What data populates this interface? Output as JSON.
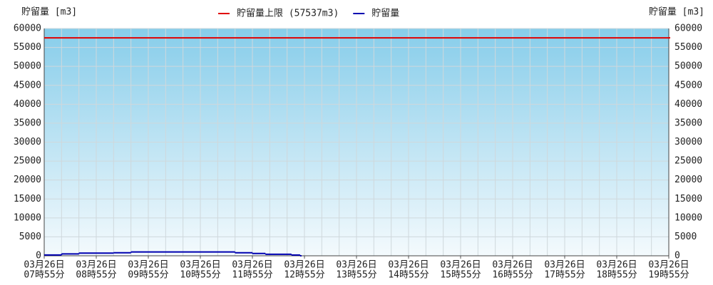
{
  "chart_data": {
    "type": "step-line",
    "y_label": "貯留量 [m3]",
    "y2_label": "貯留量 [m3]",
    "date": "03月26日",
    "xlim": [
      "07時55分",
      "19時55分"
    ],
    "xticks": [
      "07時55分",
      "08時55分",
      "09時55分",
      "10時55分",
      "11時55分",
      "12時55分",
      "13時55分",
      "14時55分",
      "15時55分",
      "16時55分",
      "17時55分",
      "18時55分",
      "19時55分"
    ],
    "ylim": [
      0,
      60000
    ],
    "y2lim": [
      0,
      60000
    ],
    "yticks": [
      0,
      5000,
      10000,
      15000,
      20000,
      25000,
      30000,
      35000,
      40000,
      45000,
      50000,
      55000,
      60000
    ],
    "y2ticks": [
      0,
      5000,
      10000,
      15000,
      20000,
      25000,
      30000,
      35000,
      40000,
      45000,
      50000,
      55000,
      60000
    ],
    "grid": true,
    "legend": "top",
    "series": [
      {
        "name": "貯留量上限 (57537m3)",
        "color": "#e00000",
        "x": [
          "07時55分",
          "19時55分"
        ],
        "values": [
          57537,
          57537
        ]
      },
      {
        "name": "貯留量",
        "color": "#0000b0",
        "x": [
          "07時55分",
          "08時15分",
          "08時35分",
          "09時15分",
          "09時35分",
          "11時35分",
          "11時55分",
          "12時10分",
          "12時40分",
          "12時50分"
        ],
        "values": [
          200,
          500,
          700,
          800,
          1000,
          800,
          600,
          400,
          200,
          0
        ]
      }
    ]
  }
}
